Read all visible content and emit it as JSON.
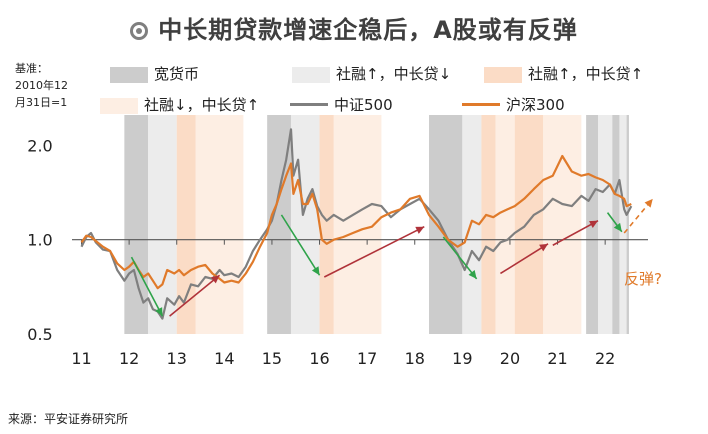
{
  "title": "中长期贷款增速企稳后，A股或有反弹",
  "basis_label": [
    "基准：",
    "2010年12",
    "月31日=1"
  ],
  "legend": [
    {
      "label": "宽货币",
      "color": "#cccccc",
      "kind": "box"
    },
    {
      "label": "社融↑，中长贷↓",
      "color": "#ececec",
      "kind": "box"
    },
    {
      "label": "社融↑，中长贷↑",
      "color": "#fbdcc6",
      "kind": "box"
    },
    {
      "label": "社融↓，中长贷↑",
      "color": "#fdeee3",
      "kind": "box"
    },
    {
      "label": "中证500",
      "color": "#7f7f7f",
      "kind": "line"
    },
    {
      "label": "沪深300",
      "color": "#e07a2a",
      "kind": "line"
    }
  ],
  "annotation": "反弹?",
  "source": "来源：平安证券研究所",
  "chart_data": {
    "type": "line",
    "title": "中长期贷款增速企稳后，A股或有反弹",
    "y_scale": "log",
    "ylim": [
      0.5,
      2.5
    ],
    "xlim": [
      2010.8,
      2022.9
    ],
    "yticks": [
      0.5,
      1.0,
      2.0
    ],
    "ytick_labels": [
      "0.5",
      "1.0",
      "2.0"
    ],
    "xticks": [
      2011,
      2012,
      2013,
      2014,
      2015,
      2016,
      2017,
      2018,
      2019,
      2020,
      2021,
      2022
    ],
    "xtick_labels": [
      "11",
      "12",
      "13",
      "14",
      "15",
      "16",
      "17",
      "18",
      "19",
      "20",
      "21",
      "22"
    ],
    "regimes": [
      {
        "type": "宽货币",
        "start": 2011.9,
        "end": 2012.4
      },
      {
        "type": "社融↑，中长贷↓",
        "start": 2012.4,
        "end": 2013.0
      },
      {
        "type": "社融↑，中长贷↑",
        "start": 2013.0,
        "end": 2013.4
      },
      {
        "type": "社融↓，中长贷↑",
        "start": 2013.4,
        "end": 2014.4
      },
      {
        "type": "宽货币",
        "start": 2014.9,
        "end": 2015.4
      },
      {
        "type": "社融↑，中长贷↓",
        "start": 2015.4,
        "end": 2016.0
      },
      {
        "type": "社融↑，中长贷↑",
        "start": 2016.0,
        "end": 2016.3
      },
      {
        "type": "社融↓，中长贷↑",
        "start": 2016.3,
        "end": 2017.3
      },
      {
        "type": "宽货币",
        "start": 2018.3,
        "end": 2019.0
      },
      {
        "type": "社融↑，中长贷↓",
        "start": 2019.0,
        "end": 2019.4
      },
      {
        "type": "社融↑，中长贷↑",
        "start": 2019.4,
        "end": 2019.7
      },
      {
        "type": "社融↓，中长贷↑",
        "start": 2019.7,
        "end": 2020.1
      },
      {
        "type": "社融↑，中长贷↑",
        "start": 2020.1,
        "end": 2020.7
      },
      {
        "type": "社融↓，中长贷↑",
        "start": 2020.7,
        "end": 2021.5
      },
      {
        "type": "宽货币",
        "start": 2021.6,
        "end": 2021.85
      },
      {
        "type": "社融↑，中长贷↓",
        "start": 2021.85,
        "end": 2022.15
      },
      {
        "type": "宽货币",
        "start": 2022.15,
        "end": 2022.3
      },
      {
        "type": "社融↑，中长贷↓",
        "start": 2022.3,
        "end": 2022.45
      },
      {
        "type": "宽货币",
        "start": 2022.45,
        "end": 2022.5
      }
    ],
    "series": [
      {
        "name": "中证500",
        "color": "#7f7f7f",
        "x": [
          2011.0,
          2011.1,
          2011.2,
          2011.3,
          2011.45,
          2011.6,
          2011.75,
          2011.9,
          2012.0,
          2012.1,
          2012.2,
          2012.3,
          2012.4,
          2012.5,
          2012.6,
          2012.7,
          2012.8,
          2012.95,
          2013.05,
          2013.15,
          2013.3,
          2013.45,
          2013.6,
          2013.75,
          2013.9,
          2014.0,
          2014.15,
          2014.3,
          2014.45,
          2014.6,
          2014.75,
          2014.9,
          2015.0,
          2015.1,
          2015.2,
          2015.3,
          2015.4,
          2015.45,
          2015.55,
          2015.65,
          2015.75,
          2015.85,
          2015.95,
          2016.05,
          2016.15,
          2016.3,
          2016.5,
          2016.7,
          2016.9,
          2017.1,
          2017.3,
          2017.5,
          2017.7,
          2017.9,
          2018.1,
          2018.3,
          2018.5,
          2018.7,
          2018.9,
          2019.05,
          2019.2,
          2019.35,
          2019.5,
          2019.65,
          2019.8,
          2019.95,
          2020.1,
          2020.3,
          2020.5,
          2020.7,
          2020.9,
          2021.1,
          2021.3,
          2021.5,
          2021.65,
          2021.8,
          2021.95,
          2022.1,
          2022.2,
          2022.3,
          2022.4,
          2022.45,
          2022.55
        ],
        "y": [
          0.95,
          1.02,
          1.05,
          0.98,
          0.93,
          0.92,
          0.8,
          0.74,
          0.78,
          0.8,
          0.7,
          0.63,
          0.65,
          0.6,
          0.59,
          0.56,
          0.65,
          0.62,
          0.66,
          0.63,
          0.72,
          0.71,
          0.76,
          0.75,
          0.8,
          0.77,
          0.78,
          0.76,
          0.82,
          0.92,
          1.0,
          1.08,
          1.15,
          1.3,
          1.55,
          1.8,
          2.25,
          1.6,
          1.8,
          1.2,
          1.35,
          1.45,
          1.28,
          1.2,
          1.15,
          1.2,
          1.15,
          1.2,
          1.25,
          1.3,
          1.28,
          1.18,
          1.25,
          1.3,
          1.35,
          1.25,
          1.15,
          1.0,
          0.9,
          0.8,
          0.92,
          0.86,
          0.95,
          0.92,
          0.98,
          1.0,
          1.05,
          1.1,
          1.2,
          1.25,
          1.35,
          1.3,
          1.28,
          1.38,
          1.33,
          1.45,
          1.42,
          1.5,
          1.4,
          1.55,
          1.25,
          1.2,
          1.28
        ]
      },
      {
        "name": "沪深300",
        "color": "#e07a2a",
        "x": [
          2011.0,
          2011.1,
          2011.2,
          2011.3,
          2011.45,
          2011.6,
          2011.75,
          2011.9,
          2012.0,
          2012.1,
          2012.2,
          2012.3,
          2012.4,
          2012.5,
          2012.6,
          2012.7,
          2012.8,
          2012.95,
          2013.05,
          2013.15,
          2013.3,
          2013.45,
          2013.6,
          2013.75,
          2013.9,
          2014.0,
          2014.15,
          2014.3,
          2014.45,
          2014.6,
          2014.75,
          2014.9,
          2015.0,
          2015.1,
          2015.2,
          2015.3,
          2015.4,
          2015.45,
          2015.55,
          2015.65,
          2015.75,
          2015.85,
          2015.95,
          2016.05,
          2016.15,
          2016.3,
          2016.5,
          2016.7,
          2016.9,
          2017.1,
          2017.3,
          2017.5,
          2017.7,
          2017.9,
          2018.1,
          2018.3,
          2018.5,
          2018.7,
          2018.9,
          2019.05,
          2019.2,
          2019.35,
          2019.5,
          2019.65,
          2019.8,
          2019.95,
          2020.1,
          2020.3,
          2020.5,
          2020.7,
          2020.9,
          2021.1,
          2021.3,
          2021.5,
          2021.65,
          2021.8,
          2021.95,
          2022.1,
          2022.2,
          2022.3,
          2022.4,
          2022.45,
          2022.55
        ],
        "y": [
          0.98,
          1.03,
          1.02,
          0.99,
          0.95,
          0.92,
          0.84,
          0.8,
          0.82,
          0.85,
          0.8,
          0.76,
          0.78,
          0.74,
          0.7,
          0.72,
          0.8,
          0.78,
          0.8,
          0.77,
          0.8,
          0.82,
          0.83,
          0.78,
          0.75,
          0.73,
          0.74,
          0.73,
          0.78,
          0.85,
          0.95,
          1.05,
          1.2,
          1.3,
          1.45,
          1.6,
          1.75,
          1.4,
          1.55,
          1.3,
          1.3,
          1.4,
          1.25,
          1.0,
          0.97,
          1.0,
          1.02,
          1.05,
          1.08,
          1.1,
          1.18,
          1.22,
          1.25,
          1.35,
          1.38,
          1.2,
          1.1,
          1.0,
          0.95,
          0.98,
          1.15,
          1.12,
          1.2,
          1.18,
          1.22,
          1.25,
          1.28,
          1.35,
          1.45,
          1.55,
          1.6,
          1.85,
          1.65,
          1.6,
          1.62,
          1.58,
          1.55,
          1.5,
          1.4,
          1.38,
          1.35,
          1.28,
          1.3
        ]
      }
    ],
    "arrows": [
      {
        "color": "#2fa34a",
        "from": [
          2012.05,
          0.88
        ],
        "to": [
          2012.7,
          0.57
        ]
      },
      {
        "color": "#b0333a",
        "from": [
          2012.85,
          0.57
        ],
        "to": [
          2013.9,
          0.77
        ]
      },
      {
        "color": "#2fa34a",
        "from": [
          2015.2,
          1.2
        ],
        "to": [
          2016.0,
          0.77
        ]
      },
      {
        "color": "#b0333a",
        "from": [
          2016.1,
          0.76
        ],
        "to": [
          2018.2,
          1.1
        ]
      },
      {
        "color": "#2fa34a",
        "from": [
          2018.6,
          1.02
        ],
        "to": [
          2019.3,
          0.75
        ]
      },
      {
        "color": "#b0333a",
        "from": [
          2019.8,
          0.78
        ],
        "to": [
          2020.8,
          0.97
        ]
      },
      {
        "color": "#b0333a",
        "from": [
          2020.9,
          0.96
        ],
        "to": [
          2021.85,
          1.15
        ]
      },
      {
        "color": "#2fa34a",
        "from": [
          2022.05,
          1.22
        ],
        "to": [
          2022.35,
          1.06
        ]
      },
      {
        "color": "#e07a2a",
        "from": [
          2022.4,
          1.05
        ],
        "to": [
          2023.0,
          1.35
        ],
        "dashed": true
      }
    ]
  }
}
